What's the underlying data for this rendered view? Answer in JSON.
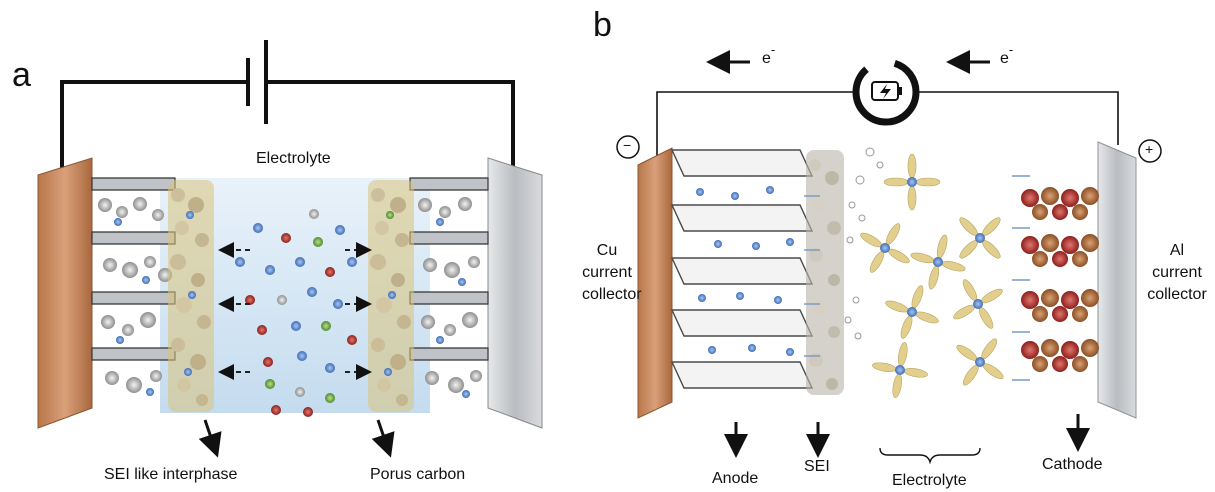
{
  "panel_a": {
    "letter": "a",
    "electrolyte": "Electrolyte",
    "sei_label": "SEI like interphase",
    "carbon_label": "Porus carbon"
  },
  "panel_b": {
    "letter": "b",
    "electron_left": "e",
    "electron_right": "e",
    "electron_sup": "-",
    "minus": "−",
    "plus": "+",
    "cu_line1": "Cu",
    "cu_line2": "current",
    "cu_line3": "collector",
    "al_line1": "Al",
    "al_line2": "current",
    "al_line3": "collector",
    "anode": "Anode",
    "sei": "SEI",
    "electrolyte": "Electrolyte",
    "cathode": "Cathode"
  },
  "colors": {
    "copper": "#c98a5a",
    "aluminum": "#c9ccd0",
    "electrolyte_blue": "#cfe3f3",
    "sei_yellow": "#d9c27a",
    "li_blue": "#5b86c8",
    "cathode_red": "#b8322c",
    "cathode_brown": "#a8663a",
    "graphene": "#4a4a4a",
    "solvent": "#e2cf8e"
  }
}
